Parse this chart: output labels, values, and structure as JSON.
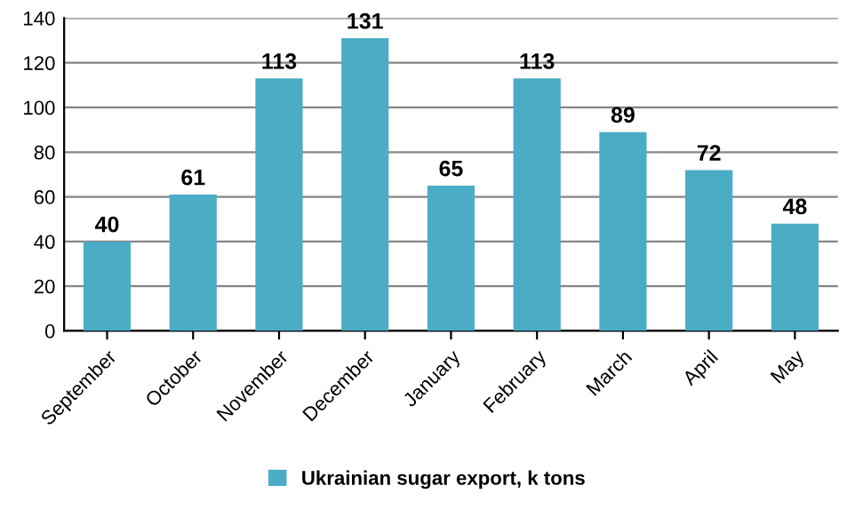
{
  "chart_data": {
    "type": "bar",
    "categories": [
      "September",
      "October",
      "November",
      "December",
      "January",
      "February",
      "March",
      "April",
      "May"
    ],
    "series": [
      {
        "name": "Ukrainian sugar export, k tons",
        "color": "#4bacc6",
        "values": [
          40,
          61,
          113,
          131,
          65,
          113,
          89,
          72,
          48
        ]
      }
    ],
    "ylim": [
      0,
      140
    ],
    "yticks": [
      0,
      20,
      40,
      60,
      80,
      100,
      120,
      140
    ],
    "grid": "y",
    "legend": "bottom",
    "data_labels": true
  }
}
